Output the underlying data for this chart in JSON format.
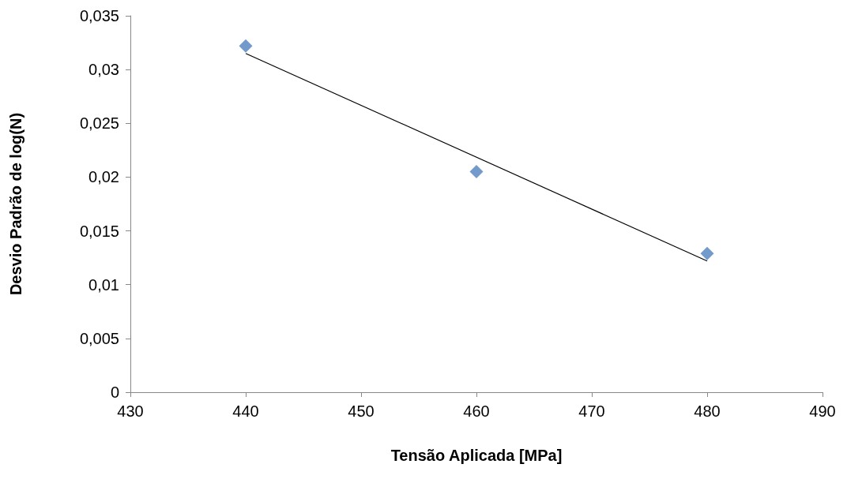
{
  "chart_data": {
    "type": "scatter",
    "xlabel": "Tensão Aplicada [MPa]",
    "ylabel": "Desvio Padrão de log(N)",
    "xlim": [
      430,
      490
    ],
    "xticks": [
      430,
      440,
      450,
      460,
      470,
      480,
      490
    ],
    "ylim": [
      0,
      0.035
    ],
    "yticks": [
      0,
      {
        "value": 0.005,
        "label": "0,005"
      },
      {
        "value": 0.01,
        "label": "0,01"
      },
      {
        "value": 0.015,
        "label": "0,015"
      },
      {
        "value": 0.02,
        "label": "0,02"
      },
      {
        "value": 0.025,
        "label": "0,025"
      },
      {
        "value": 0.03,
        "label": "0,03"
      },
      {
        "value": 0.035,
        "label": "0,035"
      }
    ],
    "grid": false,
    "series": [
      {
        "color": "#4f81bd",
        "marker": "diamond",
        "x": [
          440,
          460,
          480
        ],
        "values": [
          0.0322,
          0.0205,
          0.0129
        ]
      },
      {
        "type": "line",
        "color": "#000000",
        "marker": "none",
        "line_style": "solid",
        "x": [
          440,
          480
        ],
        "values": [
          0.0315,
          0.0122
        ]
      }
    ]
  }
}
